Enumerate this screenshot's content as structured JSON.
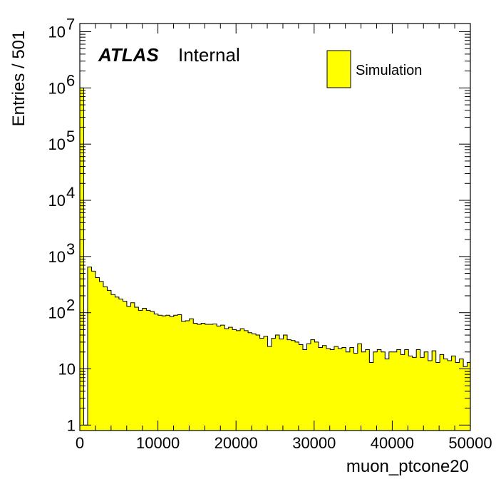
{
  "chart_data": {
    "type": "bar",
    "xlabel": "muon_ptcone20",
    "ylabel": "Entries / 501",
    "xlim": [
      0,
      50000
    ],
    "ylim": [
      0.8,
      14000000
    ],
    "yscale": "log",
    "bin_width": 501,
    "x_ticks": [
      0,
      10000,
      20000,
      30000,
      40000,
      50000
    ],
    "x_tick_labels": [
      "0",
      "10000",
      "20000",
      "30000",
      "40000",
      "50000"
    ],
    "y_ticks": [
      1,
      10,
      100,
      1000,
      10000,
      100000,
      1000000,
      10000000
    ],
    "y_tick_labels": [
      {
        "base": "1",
        "exp": ""
      },
      {
        "base": "10",
        "exp": ""
      },
      {
        "base": "10",
        "exp": "2"
      },
      {
        "base": "10",
        "exp": "3"
      },
      {
        "base": "10",
        "exp": "4"
      },
      {
        "base": "10",
        "exp": "5"
      },
      {
        "base": "10",
        "exp": "6"
      },
      {
        "base": "10",
        "exp": "7"
      }
    ],
    "fill_color": "#ffff00",
    "line_color": "#000000",
    "grid": false,
    "legend": {
      "position": "top-right",
      "entries": [
        {
          "label": "Simulation",
          "color": "#ffff00"
        }
      ]
    },
    "annotations": {
      "experiment": "ATLAS",
      "status": "Internal"
    },
    "series": [
      {
        "name": "Simulation",
        "values": [
          1000000,
          1,
          650,
          550,
          420,
          360,
          290,
          250,
          210,
          190,
          175,
          160,
          130,
          150,
          125,
          110,
          120,
          110,
          105,
          95,
          90,
          88,
          90,
          85,
          90,
          92,
          70,
          72,
          78,
          65,
          62,
          65,
          62,
          62,
          63,
          58,
          60,
          52,
          55,
          50,
          48,
          52,
          48,
          44,
          42,
          40,
          35,
          38,
          25,
          35,
          40,
          34,
          40,
          33,
          32,
          30,
          27,
          22,
          28,
          33,
          30,
          24,
          26,
          23,
          22,
          25,
          23,
          24,
          20,
          24,
          19,
          28,
          20,
          22,
          13,
          20,
          22,
          20,
          15,
          20,
          20,
          22,
          18,
          22,
          17,
          16,
          22,
          16,
          20,
          14,
          21,
          13,
          18,
          15,
          14,
          17,
          13,
          15,
          11,
          13,
          10,
          11,
          13,
          12,
          12,
          16,
          12,
          16,
          10,
          10,
          12,
          15,
          17,
          8,
          9,
          11,
          10,
          11,
          10,
          9,
          12,
          11,
          10,
          8,
          12,
          7,
          11,
          8,
          10,
          7.5,
          7.5,
          10,
          14,
          8,
          10,
          8,
          7.5,
          9,
          11,
          7,
          9,
          12,
          7,
          7,
          8,
          12,
          8,
          9,
          7.5,
          11,
          7,
          6,
          2,
          2
        ]
      }
    ]
  }
}
